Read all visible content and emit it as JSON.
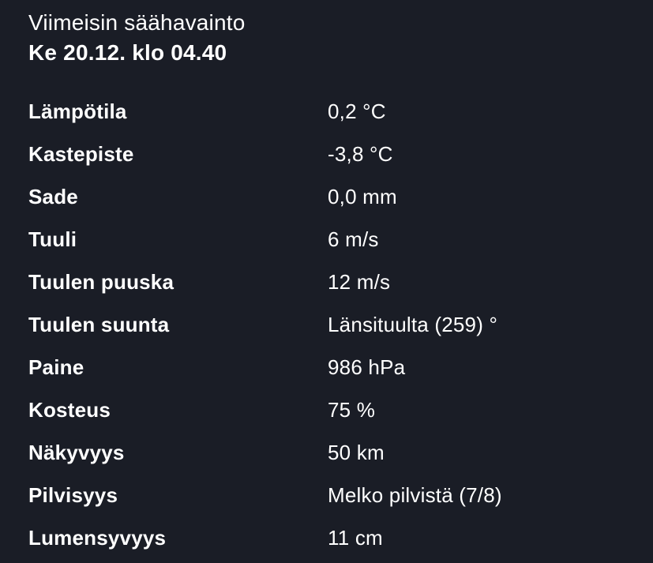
{
  "panel": {
    "title": "Viimeisin säähavainto",
    "timestamp": "Ke 20.12. klo 04.40"
  },
  "observations": [
    {
      "label": "Lämpötila",
      "value": "0,2 °C"
    },
    {
      "label": "Kastepiste",
      "value": "-3,8 °C"
    },
    {
      "label": "Sade",
      "value": "0,0 mm"
    },
    {
      "label": "Tuuli",
      "value": "6 m/s"
    },
    {
      "label": "Tuulen puuska",
      "value": "12 m/s"
    },
    {
      "label": "Tuulen suunta",
      "value": "Länsituulta (259) °"
    },
    {
      "label": "Paine",
      "value": "986 hPa"
    },
    {
      "label": "Kosteus",
      "value": "75 %"
    },
    {
      "label": "Näkyvyys",
      "value": "50 km"
    },
    {
      "label": "Pilvisyys",
      "value": "Melko pilvistä (7/8)"
    },
    {
      "label": "Lumensyvyys",
      "value": "11 cm"
    }
  ],
  "colors": {
    "background": "#1a1d26",
    "text": "#ffffff"
  }
}
